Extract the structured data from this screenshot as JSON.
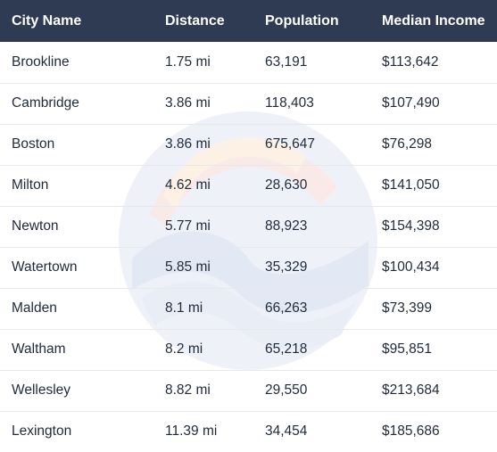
{
  "table": {
    "headers": [
      "City Name",
      "Distance",
      "Population",
      "Median Income"
    ],
    "rows": [
      [
        "Brookline",
        "1.75 mi",
        "63,191",
        "$113,642"
      ],
      [
        "Cambridge",
        "3.86 mi",
        "118,403",
        "$107,490"
      ],
      [
        "Boston",
        "3.86 mi",
        "675,647",
        "$76,298"
      ],
      [
        "Milton",
        "4.62 mi",
        "28,630",
        "$141,050"
      ],
      [
        "Newton",
        "5.77 mi",
        "88,923",
        "$154,398"
      ],
      [
        "Watertown",
        "5.85 mi",
        "35,329",
        "$100,434"
      ],
      [
        "Malden",
        "8.1 mi",
        "66,263",
        "$73,399"
      ],
      [
        "Waltham",
        "8.2 mi",
        "65,218",
        "$95,851"
      ],
      [
        "Wellesley",
        "8.82 mi",
        "29,550",
        "$213,684"
      ],
      [
        "Lexington",
        "11.39 mi",
        "34,454",
        "$185,686"
      ]
    ]
  },
  "colors": {
    "header_bg": "#2f3b52",
    "header_text": "#ffffff",
    "row_divider": "#e6e8ec",
    "body_text": "#1f2a3a"
  },
  "icons": {
    "watermark": "wave-logo-watermark"
  }
}
